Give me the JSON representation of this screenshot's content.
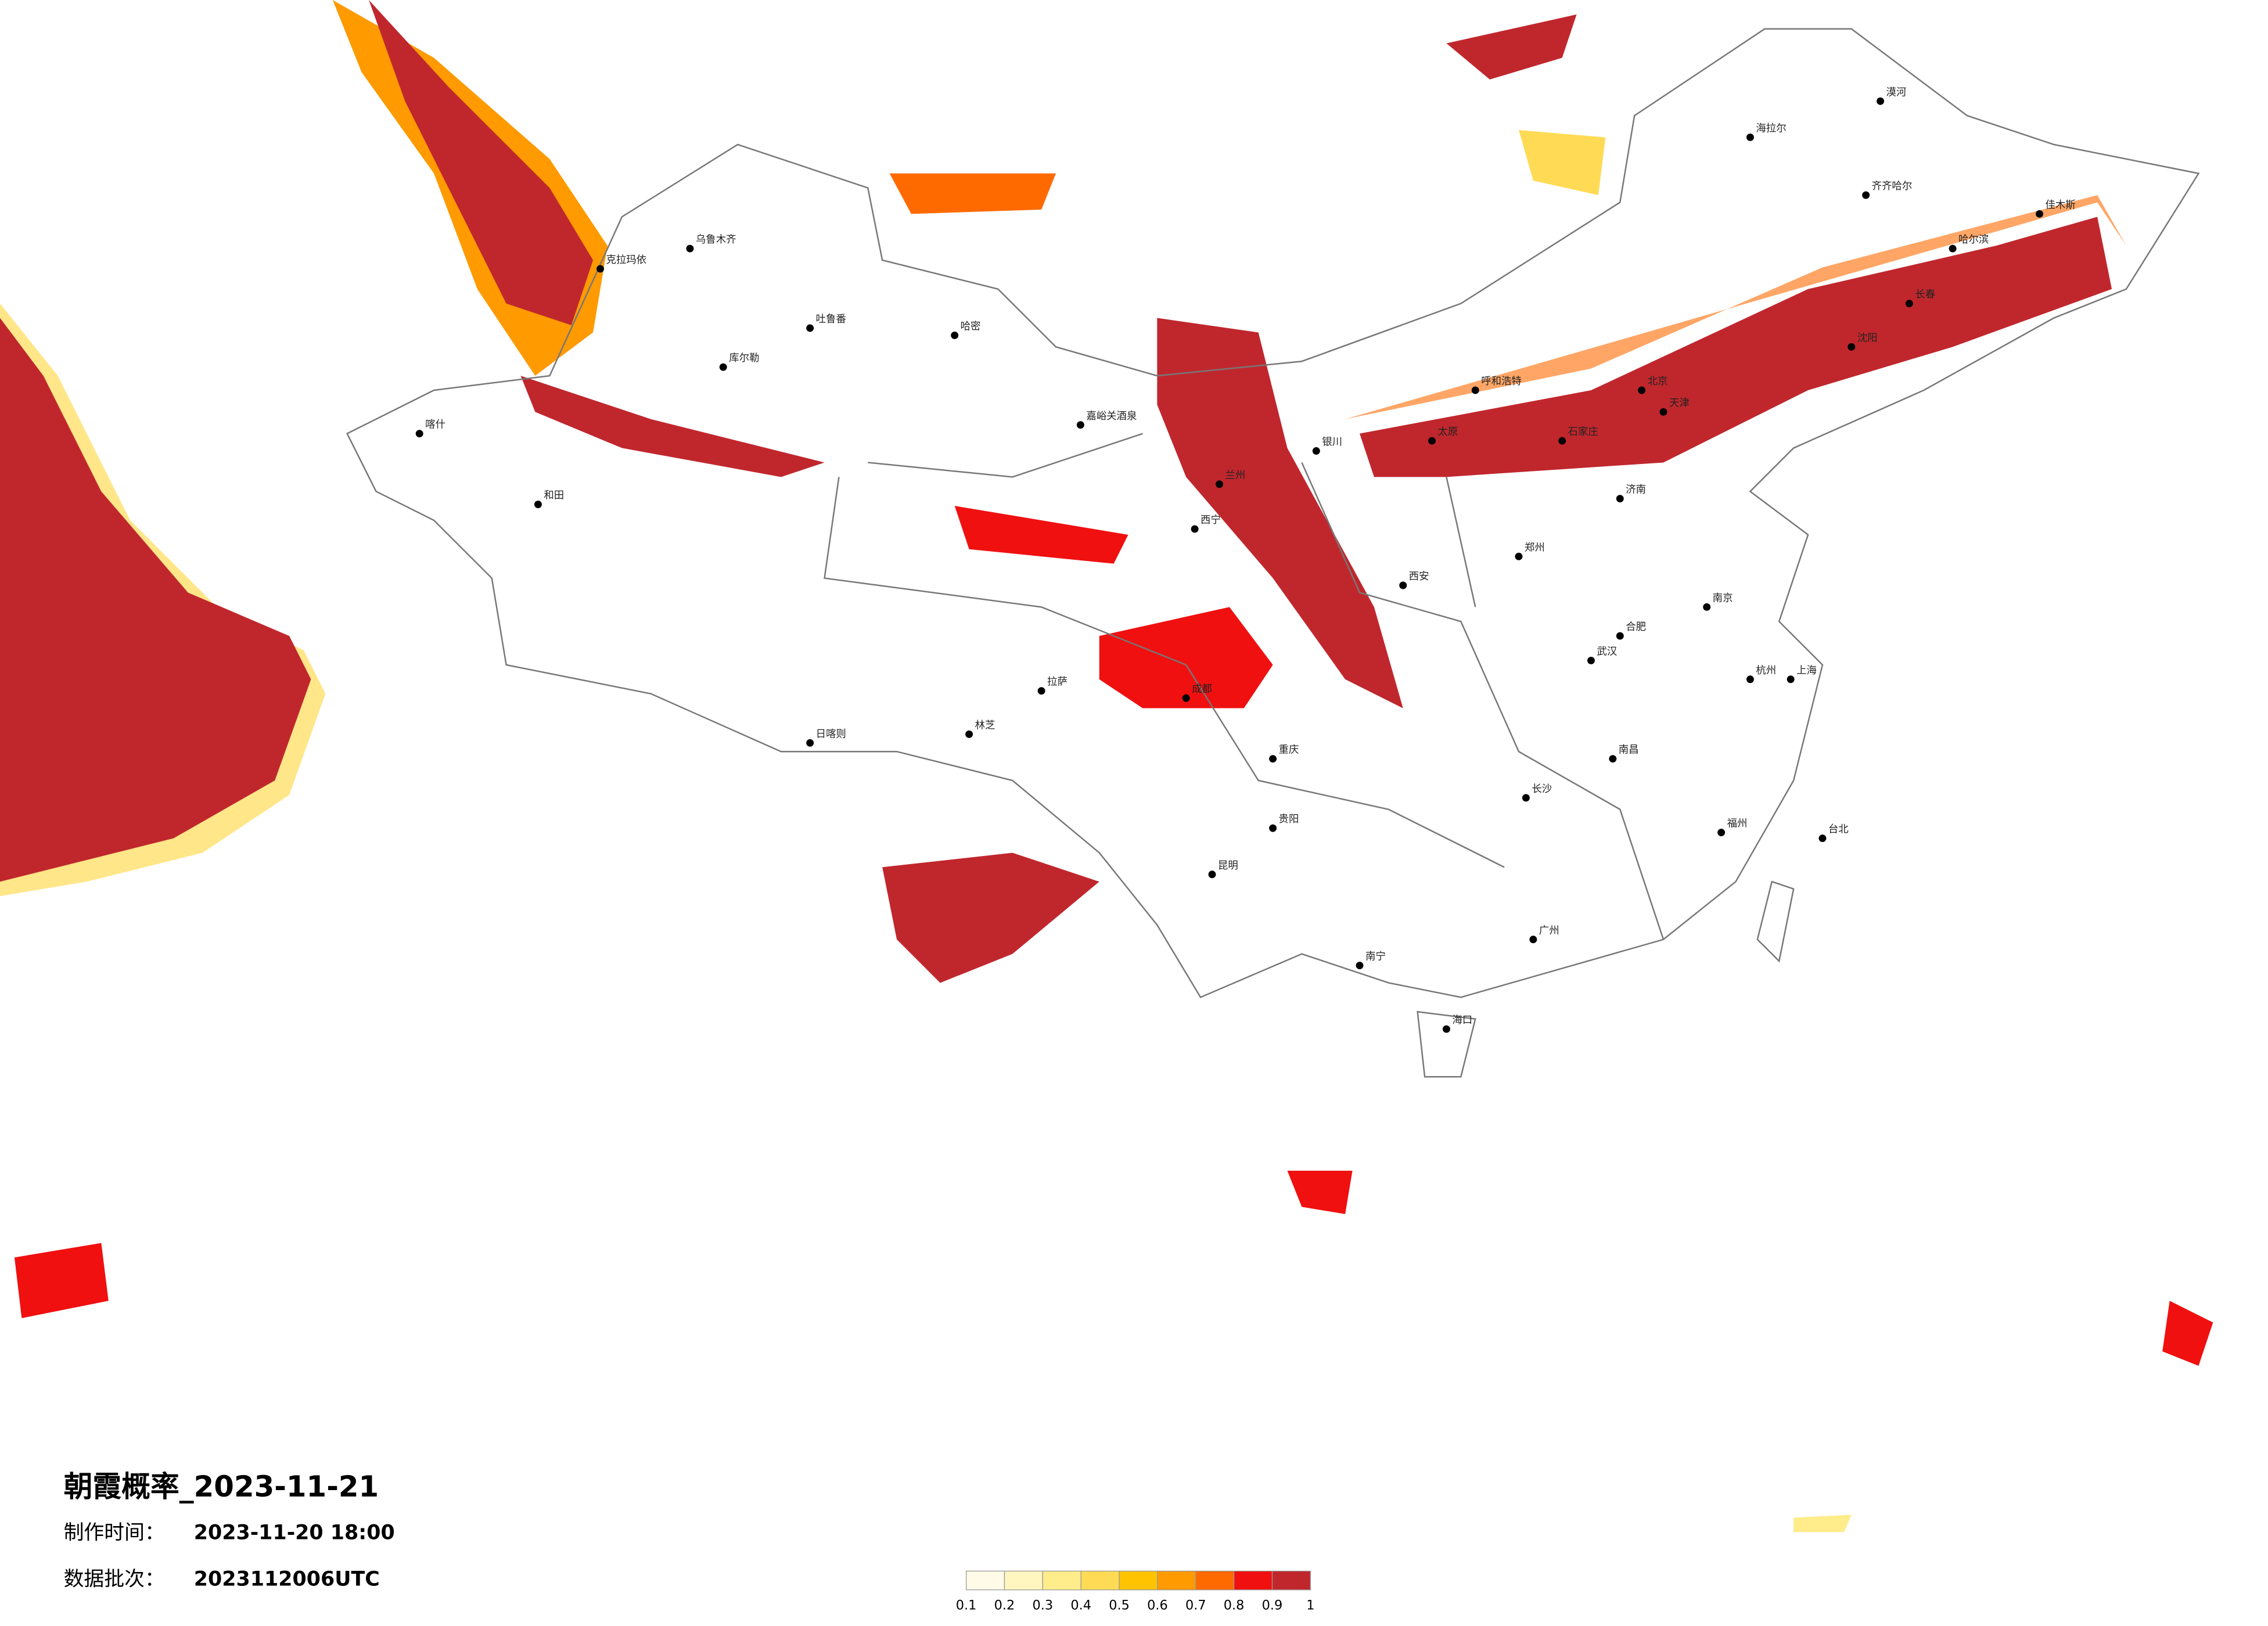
{
  "header": {
    "title": "朝霞概率_2023-11-21",
    "made_label": "制作时间：",
    "made_time": "2023-11-20 18:00",
    "batch_label": "数据批次：",
    "batch": "2023112006UTC"
  },
  "legend": {
    "ticks": [
      0.1,
      0.2,
      0.3,
      0.4,
      0.5,
      0.6,
      0.7,
      0.8,
      0.9,
      1
    ],
    "colors": [
      "#fffbe8",
      "#fff5bf",
      "#ffec8a",
      "#ffdb55",
      "#ffc300",
      "#ff9a00",
      "#ff6a00",
      "#f01010",
      "#c0272d"
    ]
  },
  "cities": [
    "克拉玛依",
    "乌鲁木齐",
    "吐鲁番",
    "哈密",
    "库尔勒",
    "喀什",
    "和田",
    "嘉峪关酒泉",
    "西宁",
    "拉萨",
    "日喀则",
    "林芝",
    "成都",
    "重庆",
    "昆明",
    "贵阳",
    "南宁",
    "海口",
    "长沙",
    "武汉",
    "南昌",
    "福州",
    "台北",
    "杭州",
    "南京",
    "合肥",
    "郑州",
    "济南",
    "石家庄",
    "太原",
    "北京",
    "天津",
    "呼和浩特",
    "银川",
    "兰州",
    "西安",
    "沈阳",
    "长春",
    "哈尔滨",
    "齐齐哈尔",
    "海拉尔",
    "漠河",
    "佳木斯",
    "广州",
    "上海"
  ]
}
